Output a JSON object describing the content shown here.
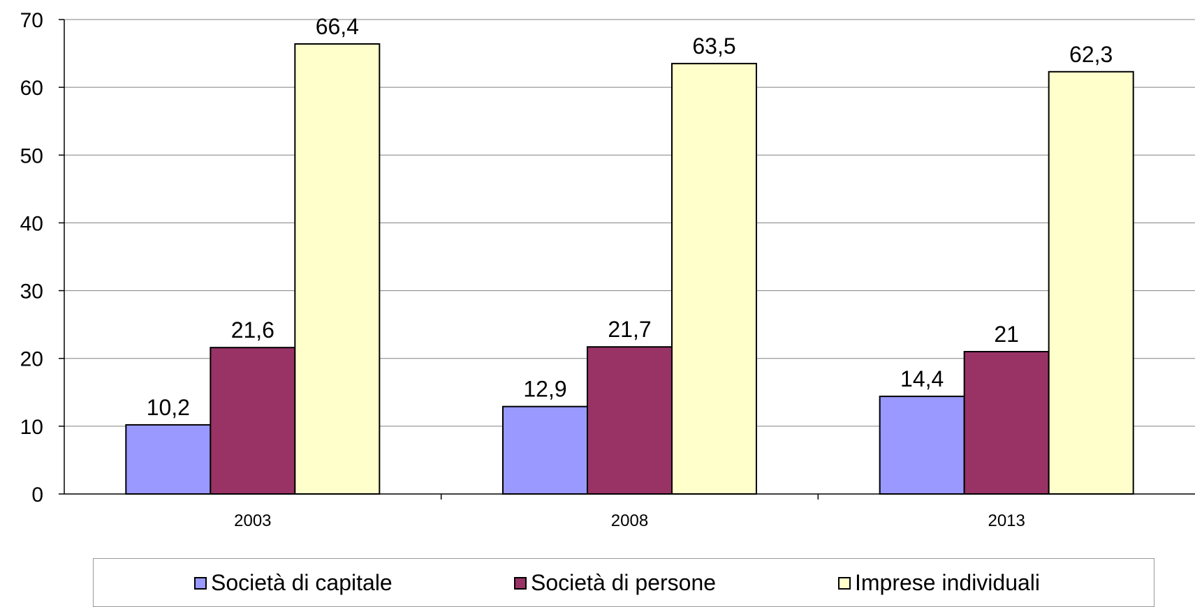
{
  "chart_data": {
    "type": "bar",
    "categories": [
      "2003",
      "2008",
      "2013"
    ],
    "series": [
      {
        "name": "Società di capitale",
        "values": [
          10.2,
          12.9,
          14.4
        ],
        "labels": [
          "10,2",
          "12,9",
          "14,4"
        ],
        "color": "#9999FF"
      },
      {
        "name": "Società di persone",
        "values": [
          21.6,
          21.7,
          21
        ],
        "labels": [
          "21,6",
          "21,7",
          "21"
        ],
        "color": "#993366"
      },
      {
        "name": "Imprese individuali",
        "values": [
          66.4,
          63.5,
          62.3
        ],
        "labels": [
          "66,4",
          "63,5",
          "62,3"
        ],
        "color": "#FFFFCC"
      }
    ],
    "ylim": [
      0,
      70
    ],
    "yticks": [
      "0",
      "10",
      "20",
      "30",
      "40",
      "50",
      "60",
      "70"
    ],
    "grid": true,
    "legend_position": "bottom"
  }
}
